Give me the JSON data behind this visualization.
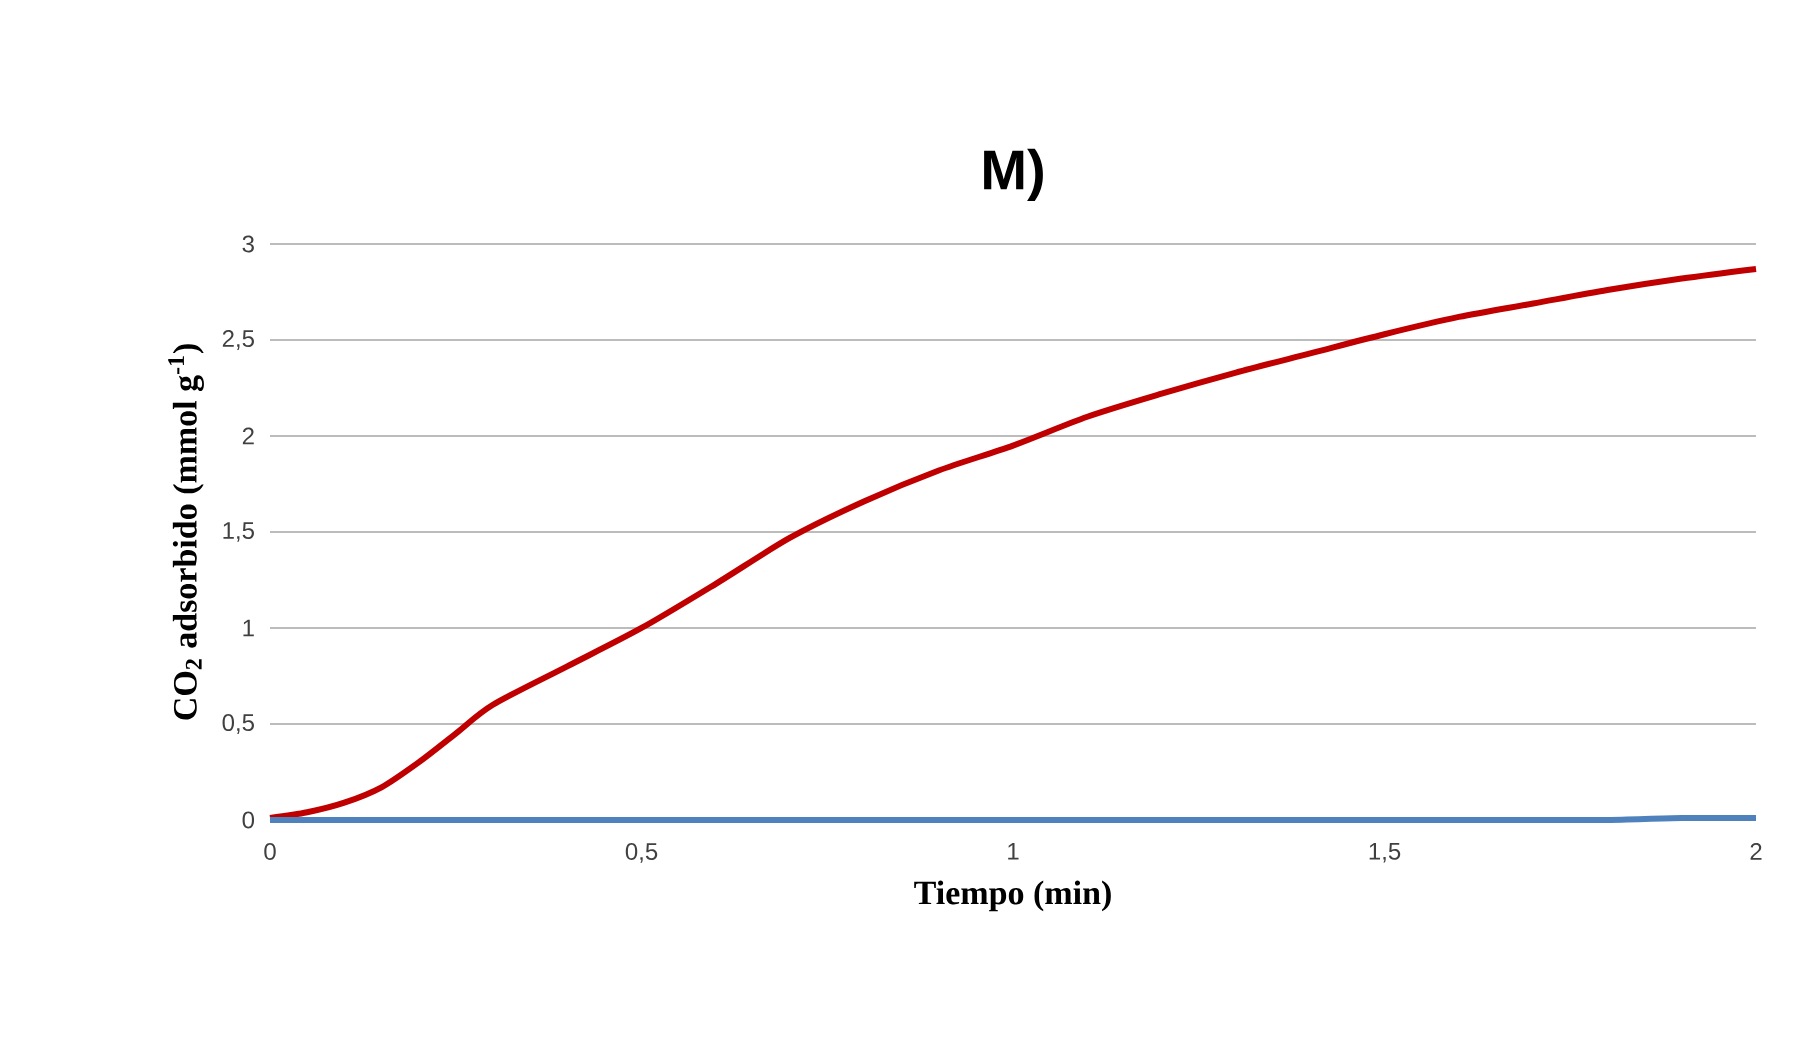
{
  "chart_data": {
    "type": "line",
    "title": "M)",
    "xlabel": "Tiempo (min)",
    "ylabel": "CO$_{2}$ adsorbido (mmol g$^{-1}$)",
    "x": [
      0,
      0.05,
      0.1,
      0.15,
      0.2,
      0.25,
      0.3,
      0.4,
      0.5,
      0.6,
      0.7,
      0.8,
      0.9,
      1.0,
      1.1,
      1.2,
      1.3,
      1.4,
      1.5,
      1.6,
      1.7,
      1.8,
      1.9,
      2.0
    ],
    "series": [
      {
        "color": "#c00000",
        "values": [
          0.01,
          0.04,
          0.09,
          0.17,
          0.3,
          0.45,
          0.6,
          0.8,
          1.0,
          1.23,
          1.47,
          1.66,
          1.82,
          1.95,
          2.1,
          2.22,
          2.33,
          2.43,
          2.53,
          2.62,
          2.69,
          2.76,
          2.82,
          2.87
        ]
      },
      {
        "color": "#4f81bd",
        "values": [
          0,
          0,
          0,
          0,
          0,
          0,
          0,
          0,
          0,
          0,
          0,
          0,
          0,
          0,
          0,
          0,
          0,
          0,
          0,
          0,
          0,
          0,
          0.01,
          0.01
        ]
      }
    ],
    "xlim": [
      0,
      2
    ],
    "ylim": [
      0,
      3
    ],
    "xticks": [
      0,
      {
        "value": 0.5,
        "label": "0,5"
      },
      1,
      {
        "value": 1.5,
        "label": "1,5"
      },
      2
    ],
    "yticks": [
      0,
      {
        "value": 0.5,
        "label": "0,5"
      },
      1,
      {
        "value": 1.5,
        "label": "1,5"
      },
      2,
      {
        "value": 2.5,
        "label": "2,5"
      },
      3
    ],
    "grid": "y",
    "marker": "none",
    "line_style": "solid"
  }
}
